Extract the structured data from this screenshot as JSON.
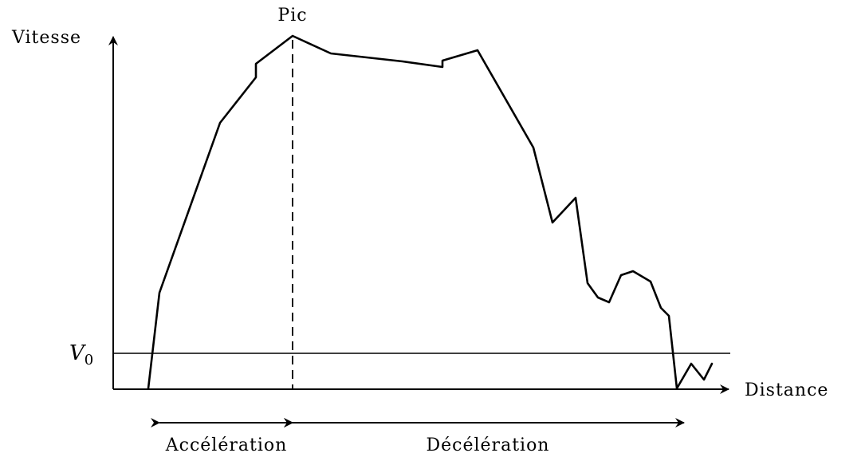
{
  "chart_data": {
    "type": "line",
    "xlabel": "Distance",
    "ylabel": "Vitesse",
    "reference_line": {
      "label": "V",
      "subscript": "0"
    },
    "peak_label": "Pic",
    "phases": [
      {
        "label": "Accélération"
      },
      {
        "label": "Décélération"
      }
    ],
    "series": [
      {
        "values": [
          [
            186,
            487
          ],
          [
            200,
            367
          ],
          [
            276,
            154
          ],
          [
            321,
            97
          ],
          [
            321,
            80
          ],
          [
            367,
            45
          ],
          [
            415,
            67
          ],
          [
            505,
            77
          ],
          [
            555,
            84
          ],
          [
            555,
            76
          ],
          [
            599,
            63
          ],
          [
            669,
            185
          ],
          [
            693,
            279
          ],
          [
            722,
            248
          ],
          [
            737,
            355
          ],
          [
            750,
            373
          ],
          [
            764,
            379
          ],
          [
            779,
            345
          ],
          [
            794,
            340
          ],
          [
            816,
            353
          ],
          [
            829,
            386
          ],
          [
            839,
            396
          ],
          [
            849,
            487
          ],
          [
            867,
            456
          ],
          [
            883,
            476
          ],
          [
            893,
            456
          ]
        ]
      }
    ]
  }
}
